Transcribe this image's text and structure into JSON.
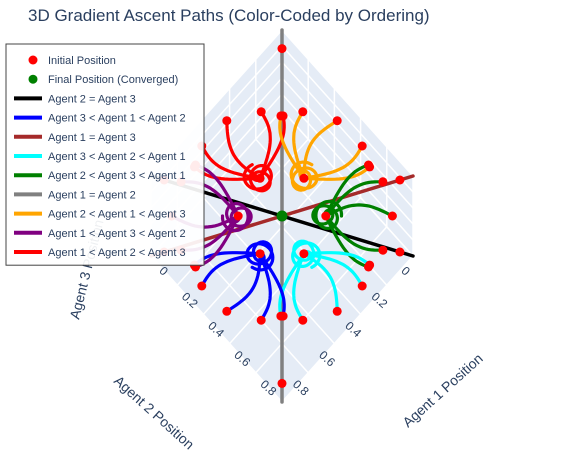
{
  "chart_data": {
    "type": "line",
    "title": "3D Gradient Ascent Paths (Color-Coded by Ordering)",
    "axes": {
      "x": {
        "label": "Agent 1 Position",
        "range": [
          0,
          1
        ],
        "ticks": [
          "0",
          "0.2",
          "0.4",
          "0.6",
          "0.8"
        ]
      },
      "y": {
        "label": "Agent 2 Position",
        "range": [
          0,
          1
        ],
        "ticks": [
          "0",
          "0.2",
          "0.4",
          "0.6",
          "0.8"
        ]
      },
      "z": {
        "label": "Agent 3 Position",
        "range": [
          0,
          1
        ]
      }
    },
    "grid": true,
    "legend_placement": "top-left",
    "legend": [
      {
        "name": "Initial Position",
        "kind": "marker",
        "color": "#ff0000"
      },
      {
        "name": "Final Position (Converged)",
        "kind": "marker",
        "color": "#008000"
      },
      {
        "name": "Agent 2 = Agent 3",
        "kind": "line",
        "color": "#000000"
      },
      {
        "name": "Agent 3 < Agent 1 < Agent 2",
        "kind": "line",
        "color": "#0000ff"
      },
      {
        "name": "Agent 1 = Agent 3",
        "kind": "line",
        "color": "#a52a2a"
      },
      {
        "name": "Agent 3 < Agent 2 < Agent 1",
        "kind": "line",
        "color": "#00ffff"
      },
      {
        "name": "Agent 2 < Agent 3 < Agent 1",
        "kind": "line",
        "color": "#008000"
      },
      {
        "name": "Agent 1 = Agent 2",
        "kind": "line",
        "color": "#808080"
      },
      {
        "name": "Agent 2 < Agent 1 < Agent 3",
        "kind": "line",
        "color": "#ffa500"
      },
      {
        "name": "Agent 1 < Agent 3 < Agent 2",
        "kind": "line",
        "color": "#800080"
      },
      {
        "name": "Agent 1 < Agent 2 < Agent 3",
        "kind": "line",
        "color": "#ff0000"
      }
    ],
    "final_position": [
      0.5,
      0.5,
      0.5
    ],
    "spiral_endpoints": [
      {
        "series": "Agent 1 < Agent 2 < Agent 3",
        "color": "#ff0000",
        "end": [
          0.333,
          0.5,
          0.667
        ]
      },
      {
        "series": "Agent 2 < Agent 1 < Agent 3",
        "color": "#ffa500",
        "end": [
          0.5,
          0.333,
          0.667
        ]
      },
      {
        "series": "Agent 2 < Agent 3 < Agent 1",
        "color": "#008000",
        "end": [
          0.667,
          0.333,
          0.5
        ]
      },
      {
        "series": "Agent 3 < Agent 2 < Agent 1",
        "color": "#00ffff",
        "end": [
          0.667,
          0.5,
          0.333
        ]
      },
      {
        "series": "Agent 3 < Agent 1 < Agent 2",
        "color": "#0000ff",
        "end": [
          0.5,
          0.667,
          0.333
        ]
      },
      {
        "series": "Agent 1 < Agent 3 < Agent 2",
        "color": "#800080",
        "end": [
          0.333,
          0.667,
          0.5
        ]
      }
    ],
    "equality_lines": [
      {
        "series": "Agent 2 = Agent 3",
        "color": "#000000",
        "from": [
          1,
          0,
          0
        ],
        "to": [
          0,
          1,
          1
        ]
      },
      {
        "series": "Agent 1 = Agent 3",
        "color": "#a52a2a",
        "from": [
          0,
          1,
          0
        ],
        "to": [
          1,
          0,
          1
        ]
      },
      {
        "series": "Agent 1 = Agent 2",
        "color": "#808080",
        "from": [
          0,
          0,
          1
        ],
        "to": [
          1,
          1,
          0
        ]
      }
    ]
  }
}
